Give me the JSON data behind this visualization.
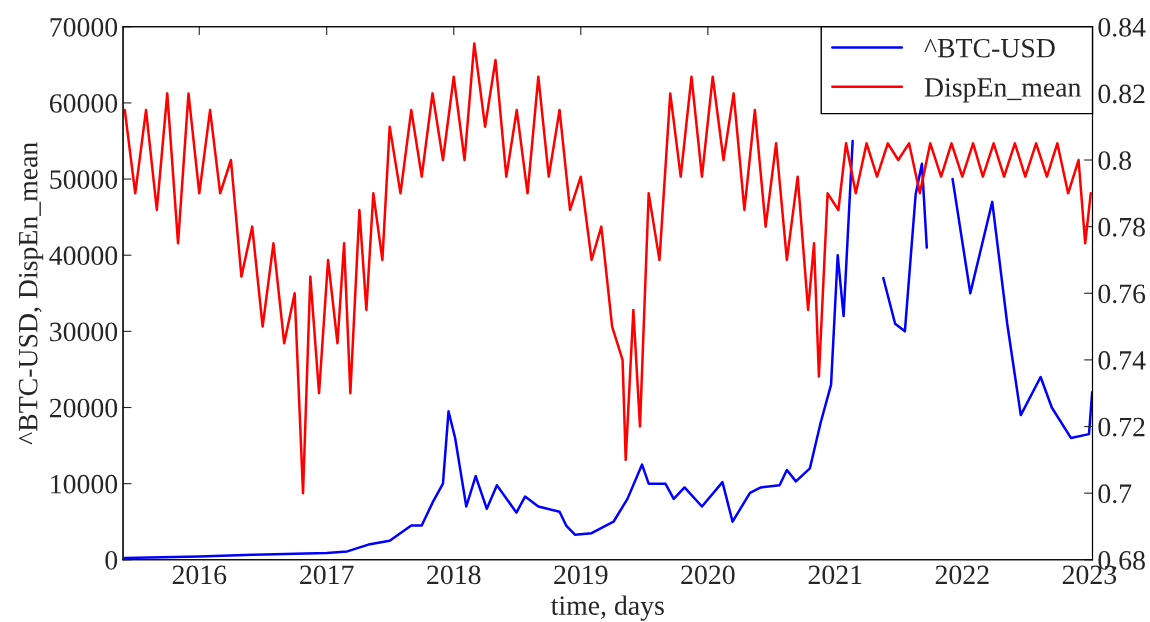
{
  "chart_data": {
    "type": "line",
    "xlabel": "time, days",
    "ylabel": "^BTC-USD, DispEn_mean",
    "xlim": [
      "2015-05-27",
      "2023-01-10"
    ],
    "xticks": [
      {
        "value": "2016-01-01",
        "label": "2016"
      },
      {
        "value": "2017-01-01",
        "label": "2017"
      },
      {
        "value": "2018-01-01",
        "label": "2018"
      },
      {
        "value": "2019-01-01",
        "label": "2019"
      },
      {
        "value": "2020-01-01",
        "label": "2020"
      },
      {
        "value": "2021-01-01",
        "label": "2021"
      },
      {
        "value": "2022-01-01",
        "label": "2022"
      },
      {
        "value": "2023-01-01",
        "label": "2023"
      }
    ],
    "ylim": [
      0,
      70000
    ],
    "yticks": [
      0,
      10000,
      20000,
      30000,
      40000,
      50000,
      60000,
      70000
    ],
    "y2lim": [
      0.68,
      0.84
    ],
    "y2ticks": [
      0.68,
      0.7,
      0.72,
      0.74,
      0.76,
      0.78,
      0.8,
      0.82,
      0.84
    ],
    "grid": false,
    "legend": "top right",
    "marker": "none",
    "line_style": "solid",
    "series": [
      {
        "name": "^BTC-USD",
        "color": "#0000ff",
        "axis": "y",
        "x": [
          "2015-06-01",
          "2016-01-01",
          "2016-06-01",
          "2017-01-01",
          "2017-03-01",
          "2017-05-01",
          "2017-07-01",
          "2017-09-01",
          "2017-10-01",
          "2017-11-01",
          "2017-12-01",
          "2017-12-17",
          "2018-01-05",
          "2018-02-06",
          "2018-03-05",
          "2018-04-06",
          "2018-05-05",
          "2018-06-30",
          "2018-07-25",
          "2018-09-01",
          "2018-11-01",
          "2018-11-20",
          "2018-12-15",
          "2019-02-01",
          "2019-04-05",
          "2019-05-15",
          "2019-06-26",
          "2019-07-15",
          "2019-09-01",
          "2019-09-25",
          "2019-10-26",
          "2019-12-15",
          "2020-02-12",
          "2020-03-12",
          "2020-05-01",
          "2020-06-01",
          "2020-07-25",
          "2020-08-15",
          "2020-09-10",
          "2020-10-20",
          "2020-11-20",
          "2020-12-20",
          "2021-01-08",
          "2021-01-25",
          "2021-02-20",
          "2021-03-13",
          "2021-04-14",
          "2021-05-19",
          "2021-06-22",
          "2021-07-20",
          "2021-08-20",
          "2021-09-07",
          "2021-09-21",
          "2021-10-20",
          "2021-11-10",
          "2021-12-04",
          "2022-01-24",
          "2022-03-28",
          "2022-05-10",
          "2022-06-18",
          "2022-08-14",
          "2022-09-15",
          "2022-11-09",
          "2022-12-31",
          "2023-01-09"
        ],
        "values": [
          230,
          430,
          650,
          900,
          1100,
          2000,
          2500,
          4500,
          4500,
          7500,
          10000,
          19500,
          16000,
          7000,
          11000,
          6700,
          9800,
          6200,
          8300,
          7000,
          6300,
          4500,
          3300,
          3500,
          5000,
          8000,
          12500,
          10000,
          10000,
          8000,
          9500,
          7000,
          10200,
          5000,
          8800,
          9500,
          9800,
          11800,
          10300,
          12000,
          18000,
          23000,
          40000,
          32000,
          55000,
          null,
          null,
          37000,
          31000,
          30000,
          48000,
          52000,
          41000,
          null,
          null,
          50000,
          35000,
          47000,
          31000,
          19000,
          24000,
          20000,
          16000,
          16500,
          22000
        ]
      },
      {
        "name": "DispEn_mean",
        "color": "#ff0000",
        "axis": "y2",
        "x": [
          "2015-06-01",
          "2015-07-01",
          "2015-08-01",
          "2015-09-01",
          "2015-10-01",
          "2015-11-01",
          "2015-12-01",
          "2016-01-01",
          "2016-02-01",
          "2016-03-01",
          "2016-04-01",
          "2016-05-01",
          "2016-06-01",
          "2016-07-01",
          "2016-08-01",
          "2016-09-01",
          "2016-10-01",
          "2016-10-25",
          "2016-11-15",
          "2016-12-10",
          "2017-01-05",
          "2017-02-01",
          "2017-02-20",
          "2017-03-10",
          "2017-04-05",
          "2017-04-25",
          "2017-05-15",
          "2017-06-10",
          "2017-07-01",
          "2017-08-01",
          "2017-09-01",
          "2017-10-01",
          "2017-11-01",
          "2017-12-01",
          "2018-01-01",
          "2018-02-01",
          "2018-03-01",
          "2018-04-01",
          "2018-05-01",
          "2018-06-01",
          "2018-07-01",
          "2018-08-01",
          "2018-09-01",
          "2018-10-01",
          "2018-11-01",
          "2018-12-01",
          "2019-01-01",
          "2019-02-01",
          "2019-03-01",
          "2019-04-01",
          "2019-05-01",
          "2019-05-10",
          "2019-06-01",
          "2019-06-20",
          "2019-07-15",
          "2019-08-15",
          "2019-09-15",
          "2019-10-15",
          "2019-11-15",
          "2019-12-15",
          "2020-01-15",
          "2020-02-15",
          "2020-03-15",
          "2020-04-15",
          "2020-05-15",
          "2020-06-15",
          "2020-07-15",
          "2020-08-15",
          "2020-09-15",
          "2020-10-15",
          "2020-11-01",
          "2020-11-15",
          "2020-12-10",
          "2021-01-10",
          "2021-02-01",
          "2021-03-01",
          "2021-04-01",
          "2021-05-01",
          "2021-06-01",
          "2021-07-01",
          "2021-08-01",
          "2021-09-01",
          "2021-10-01",
          "2021-11-01",
          "2021-12-01",
          "2022-01-01",
          "2022-02-01",
          "2022-03-01",
          "2022-04-01",
          "2022-05-01",
          "2022-06-01",
          "2022-07-01",
          "2022-08-01",
          "2022-09-01",
          "2022-10-01",
          "2022-11-01",
          "2022-12-01",
          "2022-12-20",
          "2023-01-05"
        ],
        "values": [
          0.815,
          0.79,
          0.815,
          0.785,
          0.82,
          0.775,
          0.82,
          0.79,
          0.815,
          0.79,
          0.8,
          0.765,
          0.78,
          0.75,
          0.775,
          0.745,
          0.76,
          0.7,
          0.765,
          0.73,
          0.77,
          0.745,
          0.775,
          0.73,
          0.785,
          0.755,
          0.79,
          0.77,
          0.81,
          0.79,
          0.815,
          0.795,
          0.82,
          0.8,
          0.825,
          0.8,
          0.835,
          0.81,
          0.83,
          0.795,
          0.815,
          0.79,
          0.825,
          0.795,
          0.815,
          0.785,
          0.795,
          0.77,
          0.78,
          0.75,
          0.74,
          0.71,
          0.755,
          0.72,
          0.79,
          0.77,
          0.82,
          0.795,
          0.825,
          0.795,
          0.825,
          0.8,
          0.82,
          0.785,
          0.815,
          0.78,
          0.805,
          0.77,
          0.795,
          0.755,
          0.775,
          0.735,
          0.79,
          0.785,
          0.805,
          0.79,
          0.805,
          0.795,
          0.805,
          0.8,
          0.805,
          0.79,
          0.805,
          0.795,
          0.805,
          0.795,
          0.805,
          0.795,
          0.805,
          0.795,
          0.805,
          0.795,
          0.805,
          0.795,
          0.805,
          0.79,
          0.8,
          0.775,
          0.79
        ]
      }
    ]
  }
}
